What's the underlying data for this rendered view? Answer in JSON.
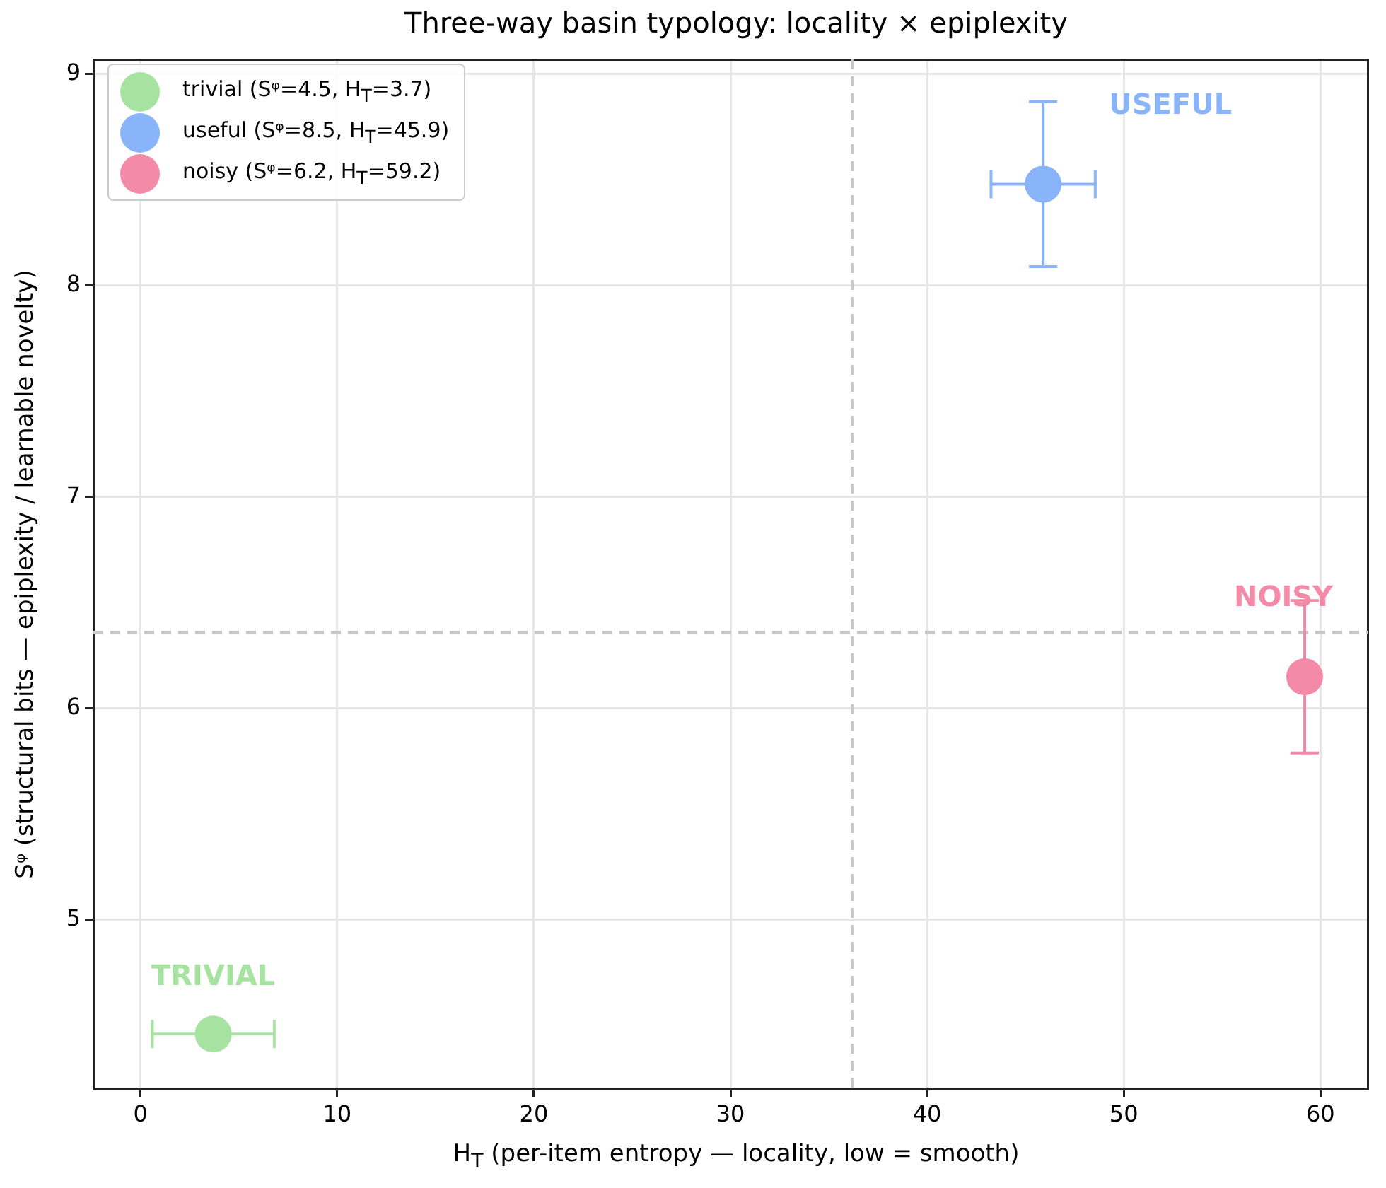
{
  "chart_data": {
    "type": "scatter",
    "title": "Three-way basin typology: locality × epiplexity",
    "xlabel": "H$_{T}$ (per-item entropy — locality, low = smooth)",
    "ylabel": "Sᵠ (structural bits — epiplexity / learnable novelty)",
    "xlim": [
      -2.4,
      62.4
    ],
    "ylim": [
      4.2,
      9.07
    ],
    "xticks": [
      0,
      10,
      20,
      30,
      40,
      50,
      60
    ],
    "yticks": [
      5,
      6,
      7,
      8,
      9
    ],
    "grid": true,
    "legend": "top left",
    "marker": "circle",
    "series": [
      {
        "name": "trivial (Sᵠ=4.5, H$_{T}$=3.7)",
        "color": "#a6e3a1",
        "x": [
          3.7
        ],
        "values": [
          4.46
        ],
        "xerrors": [
          3.1
        ]
      },
      {
        "name": "useful (Sᵠ=8.5, H$_{T}$=45.9)",
        "color": "#89b4fa",
        "x": [
          45.9
        ],
        "values": [
          8.48
        ],
        "xerrors": [
          2.65
        ],
        "errors": [
          0.39
        ]
      },
      {
        "name": "noisy (Sᵠ=6.2, H$_{T}$=59.2)",
        "color": "#f38ba8",
        "x": [
          59.2
        ],
        "values": [
          6.15
        ],
        "errors": [
          0.36
        ]
      }
    ],
    "ref_lines": [
      {
        "axis": "x",
        "value": 36.2,
        "color": "#c8c8c8",
        "line_style": "dashed"
      },
      {
        "axis": "y",
        "value": 6.36,
        "color": "#c8c8c8",
        "line_style": "dashed"
      }
    ],
    "annotations": [
      "TRIVIAL",
      "USEFUL",
      "NOISY"
    ]
  }
}
